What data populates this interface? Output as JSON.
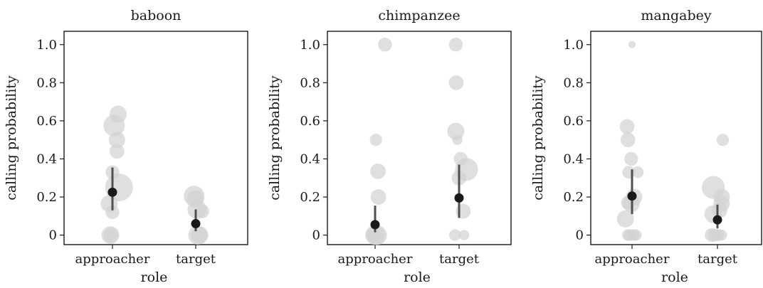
{
  "chart_data": {
    "type": "scatter",
    "xlabel": "role",
    "ylabel": "calling probability",
    "ylim": [
      -0.05,
      1.07
    ],
    "yticks": [
      0,
      0.2,
      0.4,
      0.6,
      0.8,
      1.0
    ],
    "ytick_labels": [
      "0",
      "0.2",
      "0.4",
      "0.6",
      "0.8",
      "1.0"
    ],
    "categories": [
      "approacher",
      "target"
    ],
    "grid": false,
    "colors": {
      "raw": "#d3d3d3",
      "estimate": "#1a1a1a",
      "interval": "#505050"
    },
    "panels": [
      {
        "title": "baboon",
        "raw_points": [
          {
            "category": "approacher",
            "offset": -0.05,
            "y": 0.0,
            "weight": 1.0
          },
          {
            "category": "approacher",
            "offset": -0.04,
            "y": 0.0,
            "weight": 0.6
          },
          {
            "category": "approacher",
            "offset": -0.08,
            "y": 0.165,
            "weight": 0.9
          },
          {
            "category": "approacher",
            "offset": 0.0,
            "y": 0.12,
            "weight": 0.5
          },
          {
            "category": "approacher",
            "offset": 0.16,
            "y": 0.25,
            "weight": 3.0
          },
          {
            "category": "approacher",
            "offset": 0.0,
            "y": 0.33,
            "weight": 0.5
          },
          {
            "category": "approacher",
            "offset": 0.11,
            "y": 0.44,
            "weight": 0.6
          },
          {
            "category": "approacher",
            "offset": 0.11,
            "y": 0.5,
            "weight": 0.8
          },
          {
            "category": "approacher",
            "offset": 0.04,
            "y": 0.575,
            "weight": 1.6
          },
          {
            "category": "approacher",
            "offset": 0.14,
            "y": 0.635,
            "weight": 0.9
          },
          {
            "category": "target",
            "offset": -0.04,
            "y": 0.205,
            "weight": 1.5
          },
          {
            "category": "target",
            "offset": -0.01,
            "y": 0.19,
            "weight": 0.9
          },
          {
            "category": "target",
            "offset": 0.03,
            "y": 0.135,
            "weight": 1.2
          },
          {
            "category": "target",
            "offset": 0.16,
            "y": 0.125,
            "weight": 0.5
          },
          {
            "category": "target",
            "offset": 0.05,
            "y": 0.0,
            "weight": 1.2
          },
          {
            "category": "target",
            "offset": 0.1,
            "y": 0.0,
            "weight": 0.9
          }
        ],
        "estimates": [
          {
            "category": "approacher",
            "value": 0.225,
            "lower": 0.13,
            "upper": 0.355
          },
          {
            "category": "target",
            "value": 0.06,
            "lower": 0.02,
            "upper": 0.135
          }
        ]
      },
      {
        "title": "chimpanzee",
        "raw_points": [
          {
            "category": "approacher",
            "offset": 0.0,
            "y": 0.0,
            "weight": 1.3
          },
          {
            "category": "approacher",
            "offset": 0.05,
            "y": 0.0,
            "weight": 1.3
          },
          {
            "category": "approacher",
            "offset": -0.05,
            "y": 0.0,
            "weight": 0.6
          },
          {
            "category": "approacher",
            "offset": 0.08,
            "y": 0.2,
            "weight": 0.7
          },
          {
            "category": "approacher",
            "offset": 0.07,
            "y": 0.335,
            "weight": 0.7
          },
          {
            "category": "approacher",
            "offset": 0.02,
            "y": 0.5,
            "weight": 0.35
          },
          {
            "category": "approacher",
            "offset": 0.24,
            "y": 1.0,
            "weight": 0.5
          },
          {
            "category": "target",
            "offset": -0.1,
            "y": 0.0,
            "weight": 0.3
          },
          {
            "category": "target",
            "offset": 0.12,
            "y": 0.0,
            "weight": 0.2
          },
          {
            "category": "target",
            "offset": 0.1,
            "y": 0.125,
            "weight": 0.6
          },
          {
            "category": "target",
            "offset": 0.0,
            "y": 0.3,
            "weight": 0.6
          },
          {
            "category": "target",
            "offset": 0.18,
            "y": 0.345,
            "weight": 1.9
          },
          {
            "category": "target",
            "offset": 0.04,
            "y": 0.4,
            "weight": 0.5
          },
          {
            "category": "target",
            "offset": -0.04,
            "y": 0.5,
            "weight": 0.2
          },
          {
            "category": "target",
            "offset": -0.08,
            "y": 0.545,
            "weight": 0.9
          },
          {
            "category": "target",
            "offset": -0.07,
            "y": 0.8,
            "weight": 0.6
          },
          {
            "category": "target",
            "offset": -0.08,
            "y": 1.0,
            "weight": 0.5
          }
        ],
        "estimates": [
          {
            "category": "approacher",
            "value": 0.055,
            "lower": 0.015,
            "upper": 0.155
          },
          {
            "category": "target",
            "value": 0.195,
            "lower": 0.09,
            "upper": 0.37
          }
        ]
      },
      {
        "title": "mangabey",
        "raw_points": [
          {
            "category": "approacher",
            "offset": -0.1,
            "y": 0.0,
            "weight": 0.3
          },
          {
            "category": "approacher",
            "offset": -0.06,
            "y": 0.0,
            "weight": 0.3
          },
          {
            "category": "approacher",
            "offset": 0.04,
            "y": 0.0,
            "weight": 0.3
          },
          {
            "category": "approacher",
            "offset": 0.1,
            "y": 0.0,
            "weight": 0.25
          },
          {
            "category": "approacher",
            "offset": -0.16,
            "y": 0.085,
            "weight": 0.9
          },
          {
            "category": "approacher",
            "offset": -0.1,
            "y": 0.17,
            "weight": 0.5
          },
          {
            "category": "approacher",
            "offset": -0.02,
            "y": 0.165,
            "weight": 0.9
          },
          {
            "category": "approacher",
            "offset": 0.05,
            "y": 0.2,
            "weight": 0.8
          },
          {
            "category": "approacher",
            "offset": -0.08,
            "y": 0.33,
            "weight": 0.4
          },
          {
            "category": "approacher",
            "offset": 0.14,
            "y": 0.33,
            "weight": 0.3
          },
          {
            "category": "approacher",
            "offset": -0.02,
            "y": 0.4,
            "weight": 0.5
          },
          {
            "category": "approacher",
            "offset": -0.1,
            "y": 0.5,
            "weight": 0.6
          },
          {
            "category": "approacher",
            "offset": -0.12,
            "y": 0.57,
            "weight": 0.6
          },
          {
            "category": "approacher",
            "offset": 0.0,
            "y": 1.0,
            "weight": 0.05
          },
          {
            "category": "target",
            "offset": -0.14,
            "y": 0.0,
            "weight": 0.5
          },
          {
            "category": "target",
            "offset": -0.08,
            "y": 0.0,
            "weight": 0.4
          },
          {
            "category": "target",
            "offset": 0.02,
            "y": 0.0,
            "weight": 0.35
          },
          {
            "category": "target",
            "offset": 0.1,
            "y": 0.0,
            "weight": 0.25
          },
          {
            "category": "target",
            "offset": -0.1,
            "y": 0.11,
            "weight": 1.0
          },
          {
            "category": "target",
            "offset": 0.05,
            "y": 0.13,
            "weight": 0.7
          },
          {
            "category": "target",
            "offset": 0.1,
            "y": 0.165,
            "weight": 0.8
          },
          {
            "category": "target",
            "offset": 0.1,
            "y": 0.2,
            "weight": 0.8
          },
          {
            "category": "target",
            "offset": -0.1,
            "y": 0.25,
            "weight": 1.9
          },
          {
            "category": "target",
            "offset": 0.13,
            "y": 0.5,
            "weight": 0.35
          }
        ],
        "estimates": [
          {
            "category": "approacher",
            "value": 0.205,
            "lower": 0.11,
            "upper": 0.345
          },
          {
            "category": "target",
            "value": 0.08,
            "lower": 0.035,
            "upper": 0.16
          }
        ]
      }
    ]
  }
}
